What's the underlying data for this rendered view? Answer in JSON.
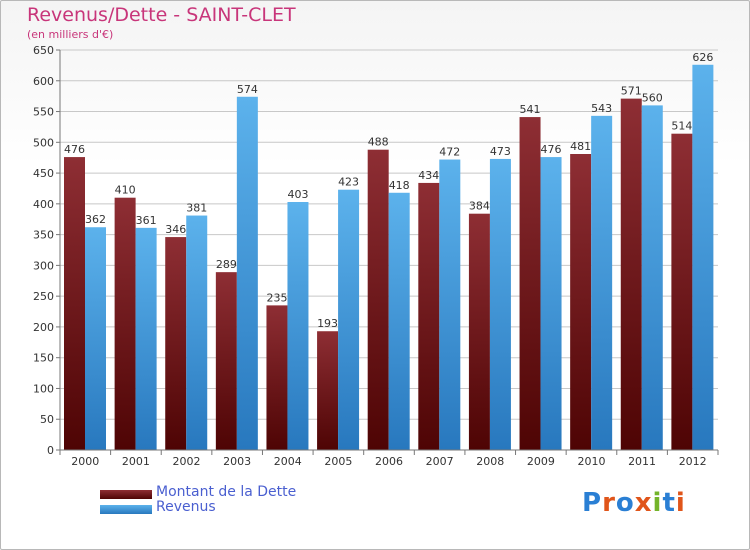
{
  "header": {
    "title": "Revenus/Dette - SAINT-CLET",
    "subtitle": "(en milliers d'€)"
  },
  "colors": {
    "series_dette": "#7a1c1c",
    "series_revenus": "#3d95dc",
    "title": "#c8357a",
    "legend_text": "#4a5fd0",
    "grid": "#c8c8c8"
  },
  "logo": {
    "text": "Proxiti",
    "letter_colors": [
      "#2a7fd4",
      "#e0551a",
      "#2a7fd4",
      "#e0551a",
      "#74b42a",
      "#2a7fd4",
      "#e0551a"
    ]
  },
  "chart_data": {
    "type": "bar",
    "title": "Revenus/Dette - SAINT-CLET",
    "subtitle": "(en milliers d'€)",
    "xlabel": "",
    "ylabel": "",
    "categories": [
      "2000",
      "2001",
      "2002",
      "2003",
      "2004",
      "2005",
      "2006",
      "2007",
      "2008",
      "2009",
      "2010",
      "2011",
      "2012"
    ],
    "series": [
      {
        "name": "Montant de la Dette",
        "color": "#7a1c1c",
        "values": [
          476,
          410,
          346,
          289,
          235,
          193,
          488,
          434,
          384,
          541,
          481,
          571,
          514
        ]
      },
      {
        "name": "Revenus",
        "color": "#3d95dc",
        "values": [
          362,
          361,
          381,
          574,
          403,
          423,
          418,
          472,
          473,
          476,
          543,
          560,
          626
        ]
      }
    ],
    "ylim": [
      0,
      650
    ],
    "yticks": [
      0,
      50,
      100,
      150,
      200,
      250,
      300,
      350,
      400,
      450,
      500,
      550,
      600,
      650
    ],
    "grid": true,
    "legend": "bottom-left"
  }
}
